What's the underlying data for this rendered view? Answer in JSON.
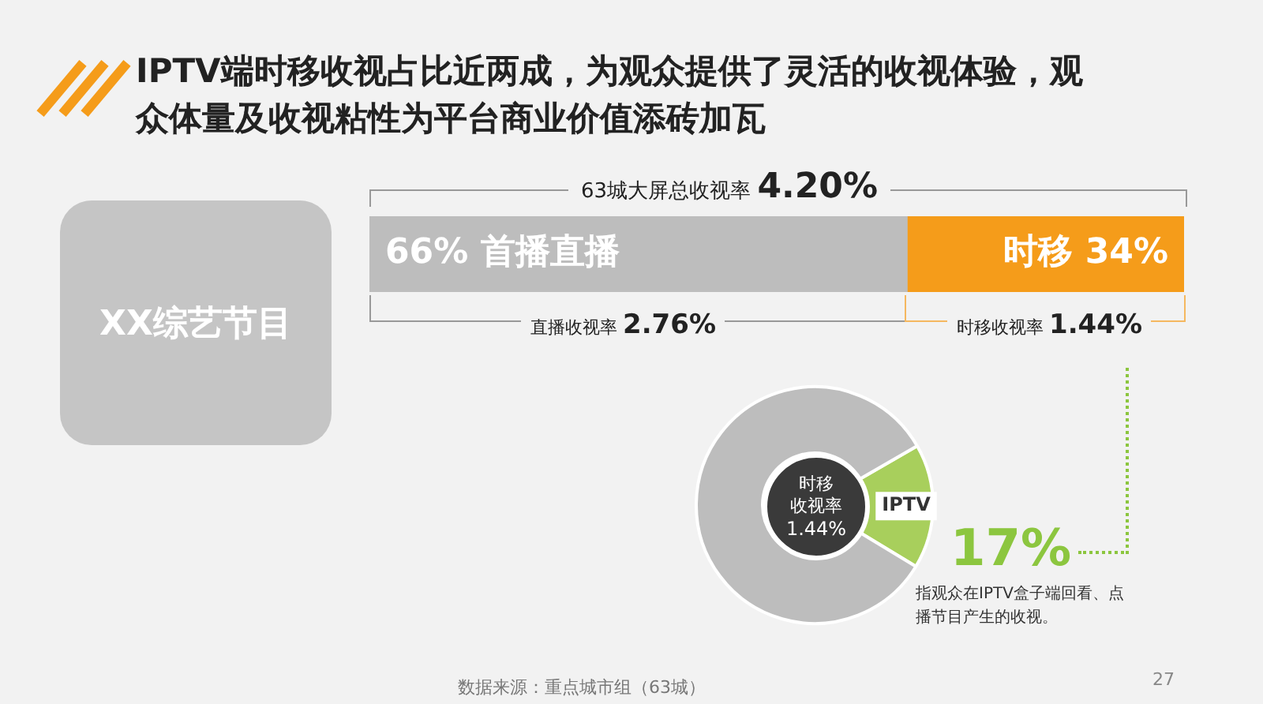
{
  "chart_data": [
    {
      "type": "bar",
      "title": "IPTV端时移收视占比近两成，为观众提供了灵活的收视体验，观众体量及收视粘性为平台商业价值添砖加瓦",
      "orientation": "horizontal",
      "stacked": true,
      "categories": [
        null
      ],
      "xlim": [
        0,
        100
      ],
      "legend": false,
      "series": [
        {
          "color": "#bdbdbd",
          "values": [
            66
          ],
          "value_labels": [
            "66% 首播直播"
          ]
        },
        {
          "color": "#f59c1a",
          "values": [
            34
          ],
          "value_labels": [
            "时移 34%"
          ]
        }
      ],
      "annotations": [
        "63城大屏总收视率 4.20%",
        "直播收视率 2.76%",
        "时移收视率 1.44%",
        "XX综艺节目",
        "数据来源：重点城市组（63城）",
        "27"
      ]
    },
    {
      "type": "donut",
      "categories": [
        "IPTV",
        null
      ],
      "values": [
        17,
        83
      ],
      "colors": [
        "#a8cf5c",
        "#bdbdbd"
      ],
      "legend": false,
      "data_labels": false,
      "annotations": [
        "时移",
        "收视率",
        "1.44%",
        "17%",
        "指观众在IPTV盒子端回看、点播节目产生的收视。"
      ]
    }
  ]
}
